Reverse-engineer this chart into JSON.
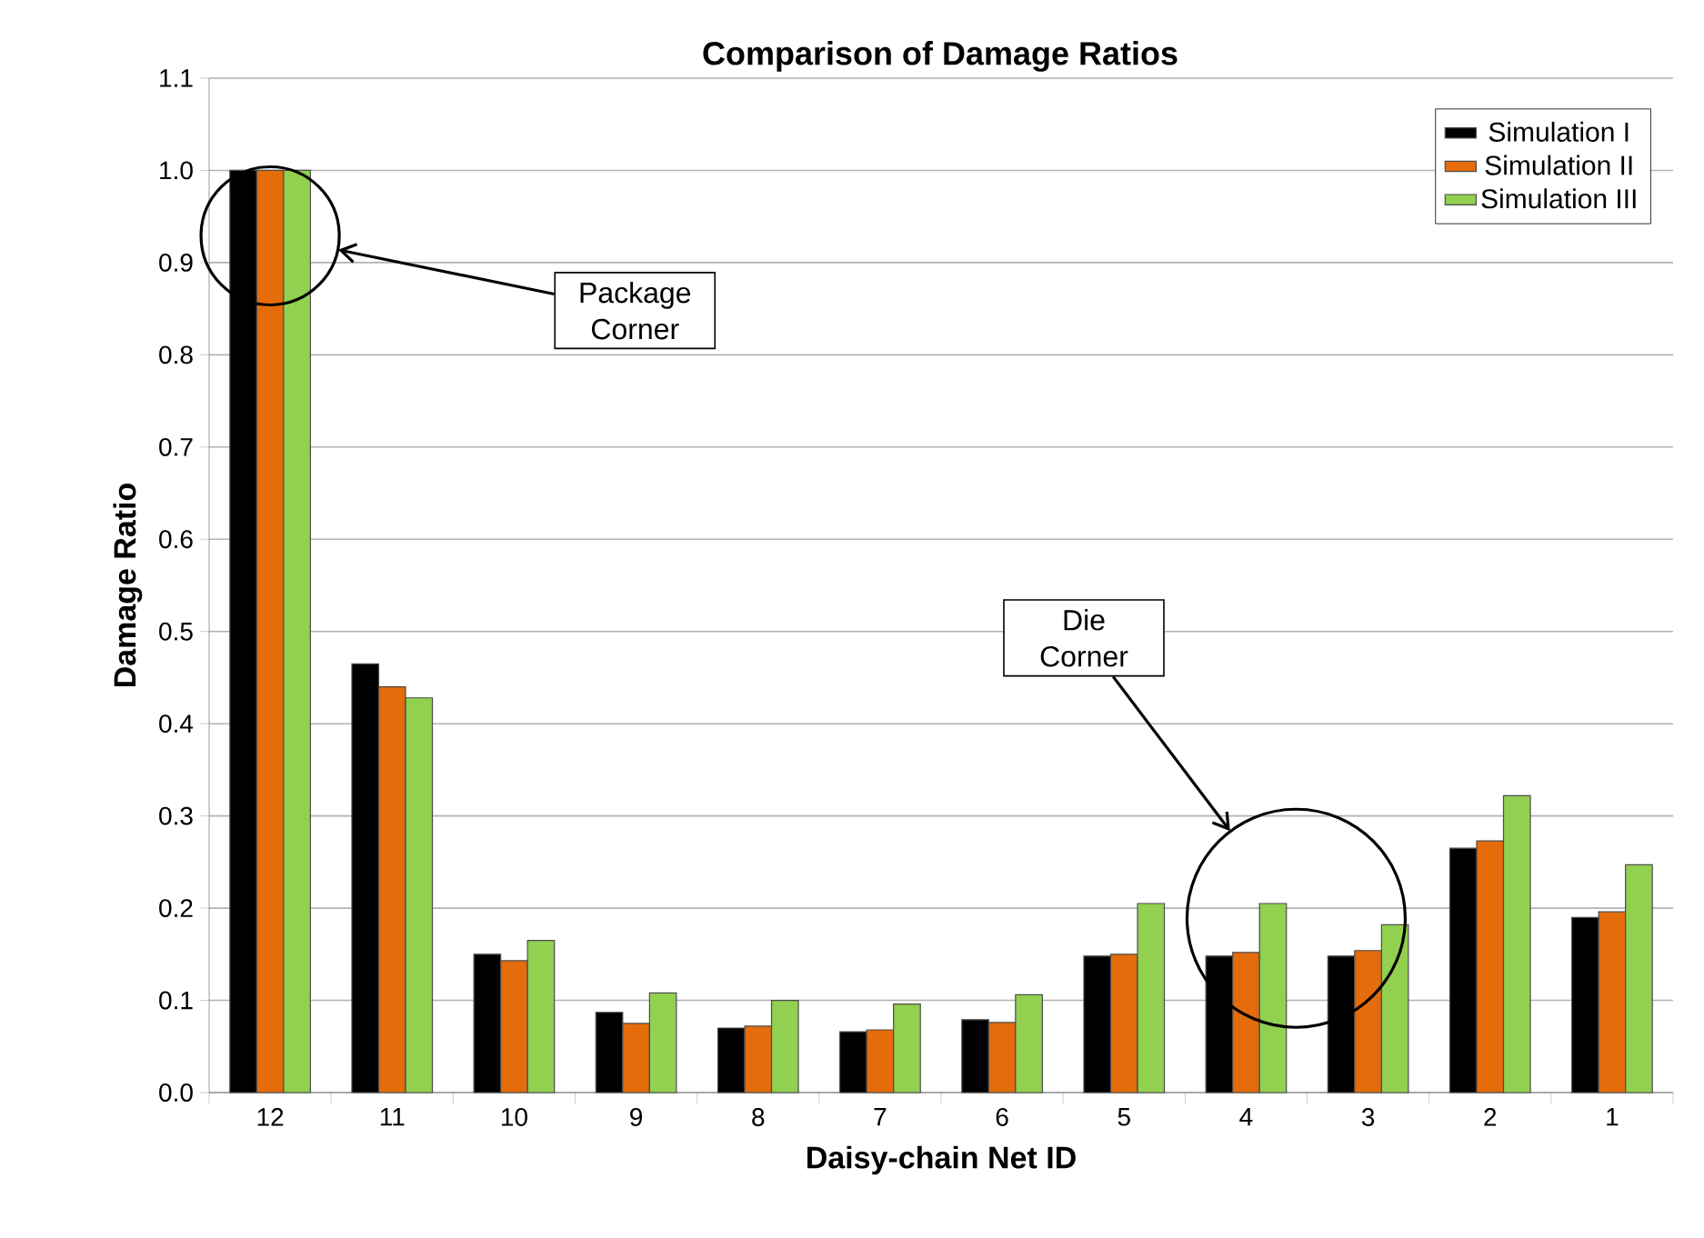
{
  "chart_data": {
    "type": "bar",
    "title": "Comparison of Damage Ratios",
    "xlabel": "Daisy-chain Net ID",
    "ylabel": "Damage Ratio",
    "categories": [
      "12",
      "11",
      "10",
      "9",
      "8",
      "7",
      "6",
      "5",
      "4",
      "3",
      "2",
      "1"
    ],
    "series": [
      {
        "name": "Simulation I",
        "color": "#000000",
        "values": [
          1.0,
          0.465,
          0.15,
          0.087,
          0.07,
          0.066,
          0.079,
          0.148,
          0.148,
          0.148,
          0.265,
          0.19
        ]
      },
      {
        "name": "Simulation II",
        "color": "#e46c0a",
        "values": [
          1.0,
          0.44,
          0.143,
          0.075,
          0.072,
          0.068,
          0.076,
          0.15,
          0.152,
          0.154,
          0.273,
          0.196
        ]
      },
      {
        "name": "Simulation III",
        "color": "#92d050",
        "values": [
          1.0,
          0.428,
          0.165,
          0.108,
          0.1,
          0.096,
          0.106,
          0.205,
          0.205,
          0.182,
          0.322,
          0.247
        ]
      }
    ],
    "ylim": [
      0,
      1.1
    ],
    "yticks": [
      {
        "value": 0,
        "label": "0.0"
      },
      {
        "value": 0.1,
        "label": "0.1"
      },
      {
        "value": 0.2,
        "label": "0.2"
      },
      {
        "value": 0.3,
        "label": "0.3"
      },
      {
        "value": 0.4,
        "label": "0.4"
      },
      {
        "value": 0.5,
        "label": "0.5"
      },
      {
        "value": 0.6,
        "label": "0.6"
      },
      {
        "value": 0.7,
        "label": "0.7"
      },
      {
        "value": 0.8,
        "label": "0.8"
      },
      {
        "value": 0.9,
        "label": "0.9"
      },
      {
        "value": 1.0,
        "label": "1.0"
      },
      {
        "value": 1.1,
        "label": "1.1"
      }
    ],
    "grid": "y",
    "legend": "top right",
    "annotations": [
      "Package Corner",
      "Die Corner"
    ]
  }
}
